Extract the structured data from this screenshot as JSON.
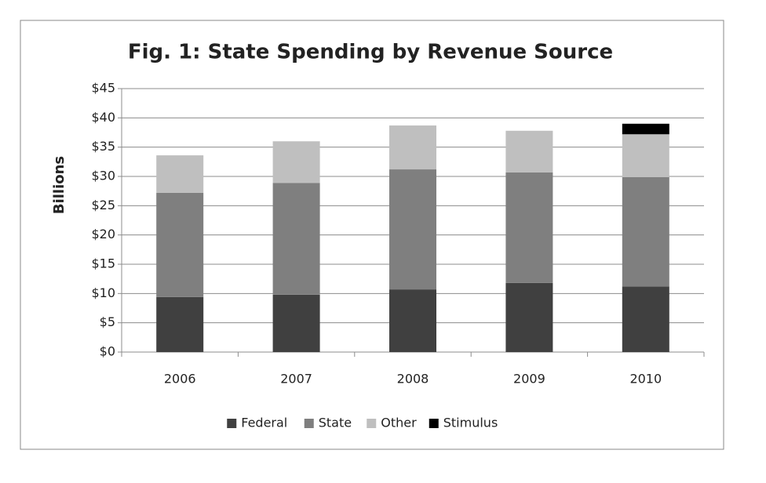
{
  "chart_data": {
    "type": "stacked-bar",
    "title": "Fig. 1: State Spending by Revenue Source",
    "y_label": "Billions",
    "categories": [
      "2006",
      "2007",
      "2008",
      "2009",
      "2010"
    ],
    "series": [
      {
        "name": "Federal",
        "color": "#404040",
        "values": [
          9.4,
          9.8,
          10.7,
          11.8,
          11.2
        ]
      },
      {
        "name": "State",
        "color": "#7f7f7f",
        "values": [
          17.8,
          19.1,
          20.5,
          18.9,
          18.7
        ]
      },
      {
        "name": "Other",
        "color": "#bfbfbf",
        "values": [
          6.4,
          7.1,
          7.5,
          7.1,
          7.3
        ]
      },
      {
        "name": "Stimulus",
        "color": "#000000",
        "values": [
          0,
          0,
          0,
          0,
          1.8
        ]
      }
    ],
    "ylim": [
      0,
      45
    ],
    "yticks": [
      {
        "value": 0,
        "label": "$0"
      },
      {
        "value": 5,
        "label": "$5"
      },
      {
        "value": 10,
        "label": "$10"
      },
      {
        "value": 15,
        "label": "$15"
      },
      {
        "value": 20,
        "label": "$20"
      },
      {
        "value": 25,
        "label": "$25"
      },
      {
        "value": 30,
        "label": "$30"
      },
      {
        "value": 35,
        "label": "$35"
      },
      {
        "value": 40,
        "label": "$40"
      },
      {
        "value": 45,
        "label": "$45"
      }
    ],
    "grid": true,
    "legend": "bottom"
  }
}
